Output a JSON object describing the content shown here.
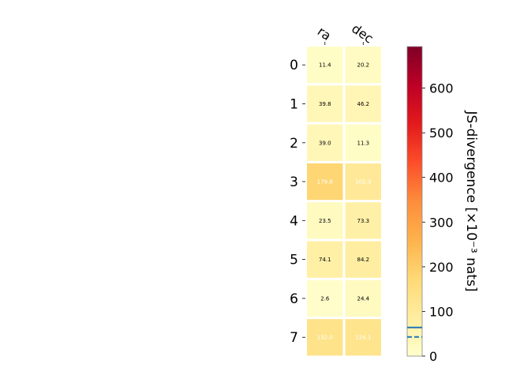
{
  "chart_data": {
    "type": "heatmap",
    "columns": [
      "ra",
      "dec"
    ],
    "rows": [
      "0",
      "1",
      "2",
      "3",
      "4",
      "5",
      "6",
      "7"
    ],
    "values": [
      [
        11.4,
        20.2
      ],
      [
        39.8,
        46.2
      ],
      [
        39.0,
        11.3
      ],
      [
        179.8,
        102.3
      ],
      [
        23.5,
        73.3
      ],
      [
        74.1,
        84.2
      ],
      [
        2.6,
        24.4
      ],
      [
        132.0,
        124.1
      ]
    ],
    "cell_labels": [
      [
        "11.4",
        "20.2"
      ],
      [
        "39.8",
        "46.2"
      ],
      [
        "39.0",
        "11.3"
      ],
      [
        "179.8",
        "102.3"
      ],
      [
        "23.5",
        "73.3"
      ],
      [
        "74.1",
        "84.2"
      ],
      [
        "2.6",
        "24.4"
      ],
      [
        "132.0",
        "124.1"
      ]
    ],
    "colorbar": {
      "label": "JS-divergence [×10⁻³ nats]",
      "range": [
        0,
        693
      ],
      "ticks": [
        0,
        100,
        200,
        300,
        400,
        500,
        600
      ],
      "tick_labels": [
        "0",
        "100",
        "200",
        "300",
        "400",
        "500",
        "600"
      ],
      "colormap": "YlOrRd",
      "solid_marker": 64,
      "dashed_marker": 43,
      "marker_color": "#1f77b4"
    }
  }
}
